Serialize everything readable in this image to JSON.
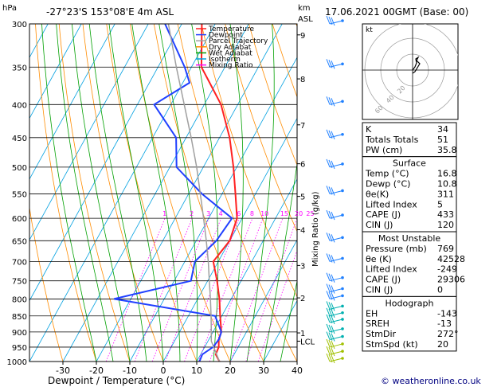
{
  "header": {
    "location": "-27°23'S  153°08'E  4m  ASL",
    "datetime": "17.06.2021  00GMT  (Base: 00)",
    "p_unit": "hPa",
    "km_unit": "km",
    "asl_unit": "ASL"
  },
  "chart_data": {
    "type": "line",
    "xlabel": "Dewpoint / Temperature (°C)",
    "ylabel_right": "Mixing Ratio (g/kg)",
    "x_ticks": [
      -30,
      -20,
      -10,
      0,
      10,
      20,
      30,
      40
    ],
    "pressure_ticks": [
      300,
      350,
      400,
      450,
      500,
      550,
      600,
      650,
      700,
      750,
      800,
      850,
      900,
      950,
      1000
    ],
    "km_ticks": [
      {
        "label": "9",
        "p": 312
      },
      {
        "label": "8",
        "p": 365
      },
      {
        "label": "7",
        "p": 430
      },
      {
        "label": "6",
        "p": 494
      },
      {
        "label": "5",
        "p": 555
      },
      {
        "label": "4",
        "p": 625
      },
      {
        "label": "3",
        "p": 710
      },
      {
        "label": "2",
        "p": 797
      },
      {
        "label": "1",
        "p": 903
      },
      {
        "label": "LCL",
        "p": 930
      }
    ],
    "mixing_ratio_labels": [
      "1",
      "2",
      "3",
      "4",
      "6",
      "8",
      "10",
      "15",
      "20",
      "25"
    ],
    "legend": {
      "position": "top-left",
      "entries": [
        {
          "name": "Temperature",
          "color": "#ff2020"
        },
        {
          "name": "Dewpoint",
          "color": "#2040ff"
        },
        {
          "name": "Parcel Trajectory",
          "color": "#a0a0a0"
        },
        {
          "name": "Dry Adiabat",
          "color": "#ff8c00"
        },
        {
          "name": "Wet Adiabat",
          "color": "#00a000"
        },
        {
          "name": "Isotherm",
          "color": "#00a0e0"
        },
        {
          "name": "Mixing Ratio",
          "color": "#ff00ff"
        }
      ]
    },
    "series": [
      {
        "name": "Temperature",
        "color": "#ff2020",
        "points": [
          [
            1000,
            16.8
          ],
          [
            975,
            14.5
          ],
          [
            950,
            14.2
          ],
          [
            925,
            13
          ],
          [
            900,
            12.5
          ],
          [
            850,
            9.5
          ],
          [
            800,
            6.5
          ],
          [
            750,
            2.8
          ],
          [
            700,
            -1.5
          ],
          [
            650,
            0
          ],
          [
            600,
            -1.5
          ],
          [
            550,
            -6
          ],
          [
            500,
            -11
          ],
          [
            450,
            -17
          ],
          [
            400,
            -25
          ],
          [
            370,
            -32
          ],
          [
            350,
            -37
          ],
          [
            300,
            -44
          ]
        ]
      },
      {
        "name": "Dewpoint",
        "color": "#2040ff",
        "points": [
          [
            1000,
            10.8
          ],
          [
            975,
            10.5
          ],
          [
            950,
            12.5
          ],
          [
            925,
            13
          ],
          [
            900,
            12.5
          ],
          [
            850,
            8
          ],
          [
            800,
            -25
          ],
          [
            750,
            -5
          ],
          [
            700,
            -7
          ],
          [
            650,
            -4
          ],
          [
            600,
            -3
          ],
          [
            550,
            -16
          ],
          [
            500,
            -28
          ],
          [
            450,
            -33
          ],
          [
            400,
            -45
          ],
          [
            370,
            -38
          ],
          [
            350,
            -42
          ],
          [
            300,
            -55
          ]
        ]
      },
      {
        "name": "Parcel Trajectory",
        "color": "#a0a0a0",
        "points": [
          [
            1000,
            16.8
          ],
          [
            930,
            11
          ],
          [
            900,
            9.5
          ],
          [
            850,
            6.8
          ],
          [
            800,
            3.8
          ],
          [
            750,
            0.5
          ],
          [
            700,
            -3
          ],
          [
            650,
            -7
          ],
          [
            600,
            -11.5
          ],
          [
            550,
            -16.5
          ],
          [
            500,
            -22
          ],
          [
            450,
            -28.5
          ],
          [
            400,
            -36
          ],
          [
            350,
            -44.5
          ],
          [
            300,
            -54
          ]
        ]
      }
    ]
  },
  "hodograph": {
    "label": "kt",
    "ring_labels": [
      "20",
      "40",
      "60"
    ]
  },
  "table": {
    "indices": [
      {
        "label": "K",
        "value": "34"
      },
      {
        "label": "Totals Totals",
        "value": "51"
      },
      {
        "label": "PW (cm)",
        "value": "35.8"
      }
    ],
    "surface": {
      "title": "Surface",
      "rows": [
        {
          "label": "Temp (°C)",
          "value": "16.8"
        },
        {
          "label": "Dewp (°C)",
          "value": "10.8"
        },
        {
          "label": "θe(K)",
          "value": "311"
        },
        {
          "label": "Lifted Index",
          "value": "5"
        },
        {
          "label": "CAPE (J)",
          "value": "433"
        },
        {
          "label": "CIN (J)",
          "value": "120"
        }
      ]
    },
    "unstable": {
      "title": "Most Unstable",
      "rows": [
        {
          "label": "Pressure (mb)",
          "value": "769"
        },
        {
          "label": "θe (K)",
          "value": "42528"
        },
        {
          "label": "Lifted Index",
          "value": "-249"
        },
        {
          "label": "CAPE (J)",
          "value": "29306"
        },
        {
          "label": "CIN (J)",
          "value": "0"
        }
      ]
    },
    "hodo": {
      "title": "Hodograph",
      "rows": [
        {
          "label": "EH",
          "value": "-143"
        },
        {
          "label": "SREH",
          "value": "-13"
        },
        {
          "label": "StmDir",
          "value": "272°"
        },
        {
          "label": "StmSpd (kt)",
          "value": "20"
        }
      ]
    }
  },
  "footer": {
    "credit": "© weatheronline.co.uk"
  }
}
